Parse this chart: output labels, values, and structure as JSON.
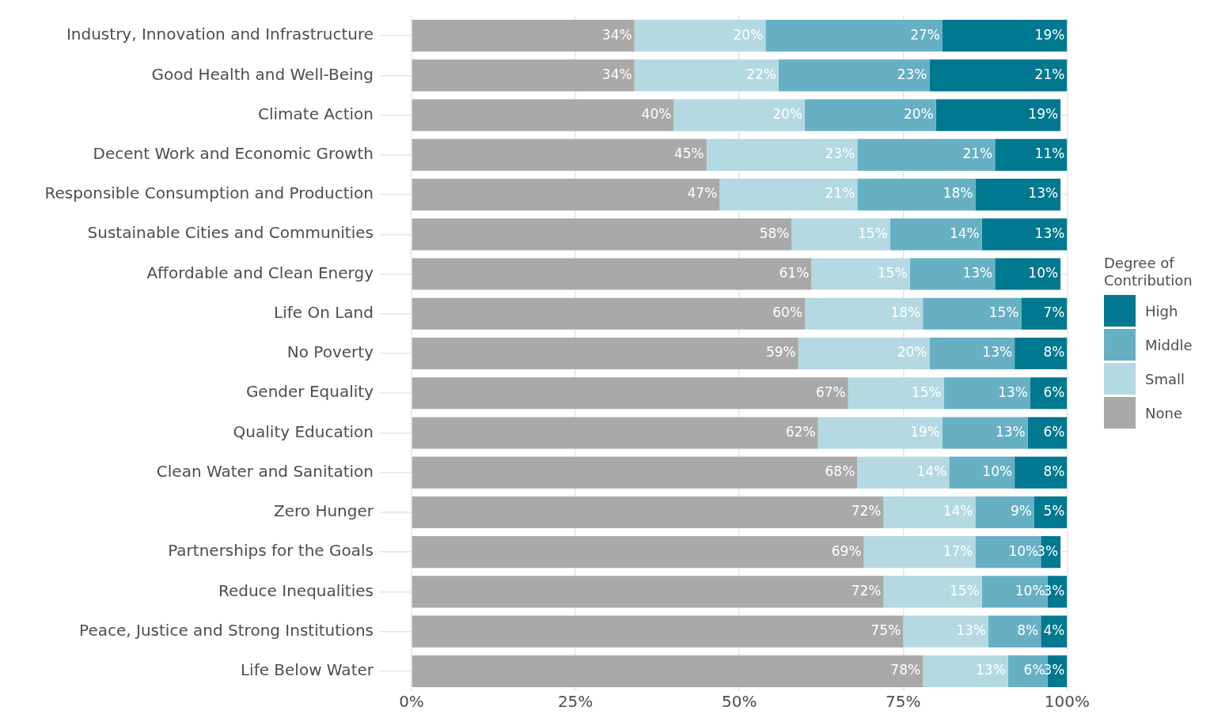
{
  "chart_data": {
    "type": "bar",
    "orientation": "horizontal",
    "stacked": true,
    "legend_title": "Degree of Contribution",
    "legend": "right",
    "grid": true,
    "categories": [
      "Industry, Innovation and Infrastructure",
      "Good Health and Well-Being",
      "Climate Action",
      "Decent Work and Economic Growth",
      "Responsible Consumption and Production",
      "Sustainable Cities and Communities",
      "Affordable and Clean Energy",
      "Life On Land",
      "No Poverty",
      "Gender Equality",
      "Quality Education",
      "Clean Water and Sanitation",
      "Zero Hunger",
      "Partnerships for the Goals",
      "Reduce Inequalities",
      "Peace, Justice and Strong Institutions",
      "Life Below Water"
    ],
    "series": [
      {
        "name": "None",
        "color": "#a9a9a9",
        "values": [
          34,
          34,
          40,
          45,
          47,
          58,
          61,
          60,
          59,
          66.6,
          62,
          68,
          72,
          69,
          72,
          75,
          78
        ],
        "value_labels": [
          "34%",
          "34%",
          "40%",
          "45%",
          "47%",
          "58%",
          "61%",
          "60%",
          "59%",
          "67%",
          "62%",
          "68%",
          "72%",
          "69%",
          "72%",
          "75%",
          "78%"
        ]
      },
      {
        "name": "Small",
        "color": "#b4d9e2",
        "values": [
          20,
          22,
          20,
          23,
          21,
          15,
          15,
          18,
          20,
          14.6,
          19,
          14,
          14,
          17,
          15,
          13,
          13
        ],
        "value_labels": [
          "20%",
          "22%",
          "20%",
          "23%",
          "21%",
          "15%",
          "15%",
          "18%",
          "20%",
          "15%",
          "19%",
          "14%",
          "14%",
          "17%",
          "15%",
          "13%",
          "13%"
        ]
      },
      {
        "name": "Middle",
        "color": "#67b0c4",
        "values": [
          27,
          23,
          20,
          21,
          18,
          14,
          13,
          15,
          13,
          13.2,
          13,
          10,
          9,
          10,
          10,
          8,
          6
        ],
        "value_labels": [
          "27%",
          "23%",
          "20%",
          "21%",
          "18%",
          "14%",
          "13%",
          "15%",
          "13%",
          "13%",
          "13%",
          "10%",
          "9%",
          "10%",
          "10%",
          "8%",
          "6%"
        ]
      },
      {
        "name": "High",
        "color": "#00788f",
        "values": [
          19,
          21,
          19,
          11,
          13,
          13,
          10,
          7,
          8,
          5.6,
          6,
          8,
          5,
          3,
          3,
          4,
          3
        ],
        "value_labels": [
          "19%",
          "21%",
          "19%",
          "11%",
          "13%",
          "13%",
          "10%",
          "7%",
          "8%",
          "6%",
          "6%",
          "8%",
          "5%",
          "3%",
          "3%",
          "4%",
          "3%"
        ]
      }
    ],
    "xlim": [
      0,
      100
    ],
    "xticks": [
      {
        "value": 0,
        "label": "0%"
      },
      {
        "value": 25,
        "label": "25%"
      },
      {
        "value": 50,
        "label": "50%"
      },
      {
        "value": 75,
        "label": "75%"
      },
      {
        "value": 100,
        "label": "100%"
      }
    ]
  }
}
